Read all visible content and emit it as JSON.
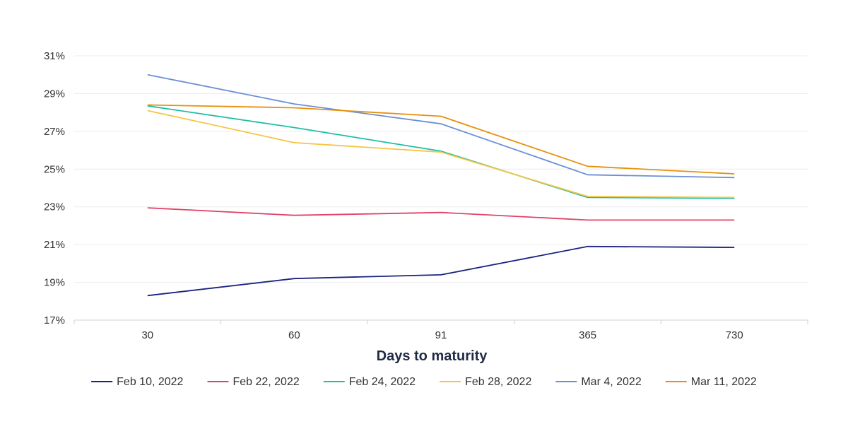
{
  "chart_data": {
    "type": "line",
    "xlabel": "Days to maturity",
    "ylabel": "",
    "categories": [
      "30",
      "60",
      "91",
      "365",
      "730"
    ],
    "ylim": [
      17,
      31
    ],
    "yticks": [
      17,
      19,
      21,
      23,
      25,
      27,
      29,
      31
    ],
    "ytick_labels": [
      "17%",
      "19%",
      "21%",
      "23%",
      "25%",
      "27%",
      "29%",
      "31%"
    ],
    "grid": true,
    "legend_position": "bottom",
    "series": [
      {
        "name": "Feb 10, 2022",
        "color": "#1a237e",
        "values": [
          18.3,
          19.2,
          19.4,
          20.9,
          20.85
        ]
      },
      {
        "name": "Feb 22, 2022",
        "color": "#e0436a",
        "values": [
          22.95,
          22.55,
          22.7,
          22.3,
          22.3
        ]
      },
      {
        "name": "Feb 24, 2022",
        "color": "#1ebfa5",
        "values": [
          28.35,
          27.2,
          25.95,
          23.5,
          23.45
        ]
      },
      {
        "name": "Feb 28, 2022",
        "color": "#f5c542",
        "values": [
          28.1,
          26.4,
          25.9,
          23.55,
          23.5
        ]
      },
      {
        "name": "Mar 4, 2022",
        "color": "#6b8fd6",
        "values": [
          30.0,
          28.45,
          27.4,
          24.7,
          24.55
        ]
      },
      {
        "name": "Mar 11, 2022",
        "color": "#e8900c",
        "values": [
          28.4,
          28.25,
          27.8,
          25.15,
          24.75
        ]
      }
    ]
  }
}
